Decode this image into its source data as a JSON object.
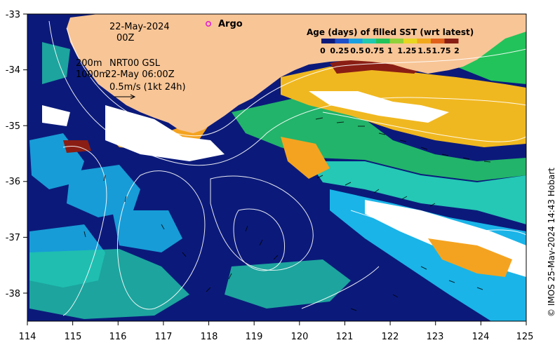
{
  "map": {
    "lon_ticks": [
      "114",
      "115",
      "116",
      "117",
      "118",
      "119",
      "120",
      "121",
      "122",
      "123",
      "124",
      "125"
    ],
    "lat_ticks": [
      "-33",
      "-34",
      "-35",
      "-36",
      "-37",
      "-38"
    ],
    "lon_range": [
      114,
      125
    ],
    "lat_range": [
      -38.5,
      -33
    ]
  },
  "annotations": {
    "date": "22-May-2024",
    "time": "00Z",
    "argo_label": "Argo",
    "isobath_200": "200m",
    "isobath_1000": "1000m",
    "product": "NRT00 GSL",
    "product_time": "22-May 06:00Z",
    "scale_arrow": "0.5m/s (1kt 24h)",
    "credit": "© IMOS 25-May-2024 14:43 Hobart"
  },
  "colorbar": {
    "title": "Age (days) of filled SST (wrt latest)",
    "tick_labels": [
      "0",
      "0.25",
      "0.5",
      "0.75",
      "1",
      "1.25",
      "1.5",
      "1.75",
      "2"
    ],
    "range": [
      0,
      2
    ],
    "colors": [
      "#0b1a7a",
      "#1f4fc9",
      "#1aa0e0",
      "#20c9b0",
      "#22c35a",
      "#8fd13a",
      "#e8d620",
      "#f2a81c",
      "#e0601a",
      "#8a1e14"
    ]
  },
  "colors": {
    "land": "#f8c596",
    "deep_ocean": "#0b1a7a",
    "shelf_green": "#22b46a",
    "teal": "#25c7b5",
    "cyan": "#1ab4e8",
    "orange": "#f4a320",
    "yellow": "#f0d02a",
    "dark_red": "#8a1e14",
    "contour": "#ffffff",
    "argo_marker": "#e020d0"
  }
}
